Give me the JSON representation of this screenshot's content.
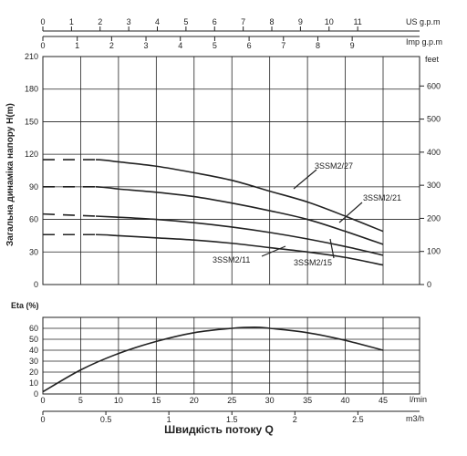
{
  "chart_data": [
    {
      "type": "line",
      "title": "",
      "ylabel": "Загальна динаміка напору H(m)",
      "ylabel_right": "feet",
      "xlim": [
        0,
        45
      ],
      "ylim": [
        0,
        210
      ],
      "yticks": [
        "0",
        "30",
        "60",
        "90",
        "120",
        "150",
        "180",
        "210"
      ],
      "yticks_right": [
        "0",
        "100",
        "200",
        "300",
        "400",
        "500",
        "600"
      ],
      "us_axis": {
        "label": "US g.p.m",
        "ticks": [
          "0",
          "1",
          "2",
          "3",
          "4",
          "5",
          "6",
          "7",
          "8",
          "9",
          "10",
          "11"
        ]
      },
      "imp_axis": {
        "label": "Imp g.p.m",
        "ticks": [
          "0",
          "1",
          "2",
          "3",
          "4",
          "5",
          "6",
          "7",
          "8",
          "9"
        ]
      },
      "grid": true,
      "series": [
        {
          "name": "3SSM2/27",
          "x": [
            0,
            7,
            10,
            15,
            20,
            25,
            30,
            35,
            40,
            45
          ],
          "y": [
            115,
            115,
            113,
            109,
            103,
            96,
            86,
            76,
            63,
            49
          ]
        },
        {
          "name": "3SSM2/21",
          "x": [
            0,
            7,
            10,
            15,
            20,
            25,
            30,
            35,
            40,
            45
          ],
          "y": [
            90,
            90,
            88,
            85,
            81,
            75,
            68,
            60,
            49,
            37
          ]
        },
        {
          "name": "3SSM2/15",
          "x": [
            0,
            7,
            10,
            15,
            20,
            25,
            30,
            35,
            40,
            45
          ],
          "y": [
            65,
            63,
            62,
            60,
            57,
            53,
            48,
            42,
            35,
            27
          ]
        },
        {
          "name": "3SSM2/11",
          "x": [
            0,
            7,
            10,
            15,
            20,
            25,
            30,
            35,
            40,
            45
          ],
          "y": [
            46,
            46,
            45,
            43,
            41,
            38,
            34,
            30,
            25,
            18
          ]
        }
      ]
    },
    {
      "type": "line",
      "title": "",
      "ylabel": "Eta (%)",
      "xlabel": "Швидкість потоку Q",
      "xunit_lmin": "l/min",
      "xunit_m3h": "m3/h",
      "xlim": [
        0,
        45
      ],
      "ylim": [
        0,
        70
      ],
      "yticks": [
        "0",
        "10",
        "20",
        "30",
        "40",
        "50",
        "60"
      ],
      "xticks_lmin": [
        "0",
        "5",
        "10",
        "15",
        "20",
        "25",
        "30",
        "35",
        "40",
        "45"
      ],
      "xticks_m3h": [
        "0",
        "0.5",
        "1",
        "1.5",
        "2",
        "2.5"
      ],
      "grid": true,
      "series": [
        {
          "x": [
            0,
            5,
            10,
            15,
            20,
            25,
            28,
            30,
            35,
            40,
            45
          ],
          "y": [
            2,
            22,
            37,
            48,
            56,
            60,
            61,
            60,
            56,
            49,
            40
          ]
        }
      ]
    }
  ]
}
